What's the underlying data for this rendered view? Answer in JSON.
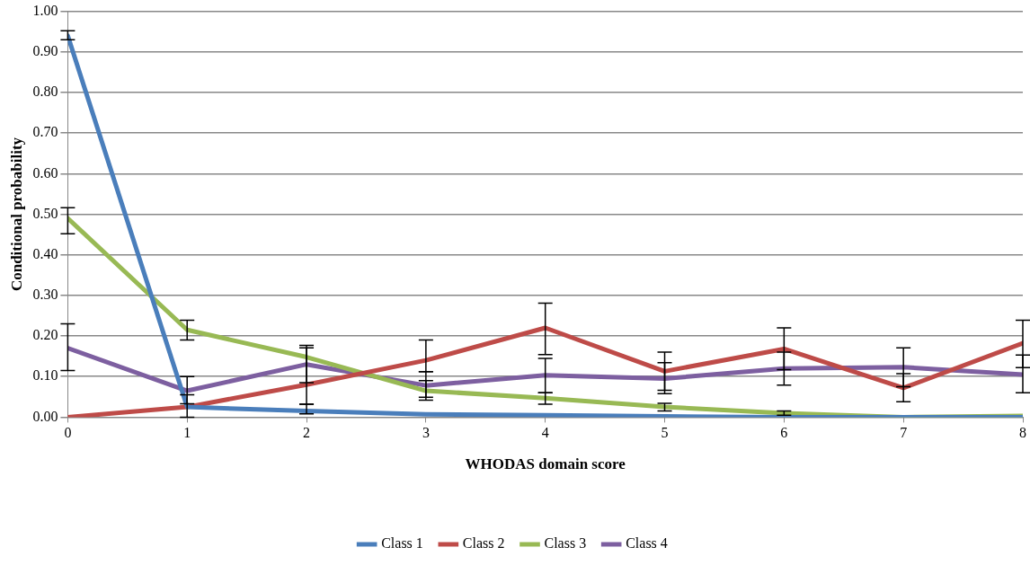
{
  "chart_data": {
    "type": "line",
    "xlabel": "WHODAS domain score",
    "ylabel": "Conditional probability",
    "x": [
      0,
      1,
      2,
      3,
      4,
      5,
      6,
      7,
      8
    ],
    "xlim": [
      0,
      8
    ],
    "xticks": [
      0,
      1,
      2,
      3,
      4,
      5,
      6,
      7,
      8
    ],
    "ylim": [
      0,
      1
    ],
    "yticks": [
      {
        "value": 0,
        "label": "0.00"
      },
      {
        "value": 0.1,
        "label": "0.10"
      },
      {
        "value": 0.2,
        "label": "0.20"
      },
      {
        "value": 0.3,
        "label": "0.30"
      },
      {
        "value": 0.4,
        "label": "0.40"
      },
      {
        "value": 0.5,
        "label": "0.50"
      },
      {
        "value": 0.6,
        "label": "0.60"
      },
      {
        "value": 0.7,
        "label": "0.70"
      },
      {
        "value": 0.8,
        "label": "0.80"
      },
      {
        "value": 0.9,
        "label": "0.90"
      },
      {
        "value": 1,
        "label": "1.00"
      }
    ],
    "grid": "y",
    "legend": "bottom",
    "marker": "none",
    "line_style": "solid",
    "series": [
      {
        "name": "Class 1",
        "color": "#4a7ebb",
        "values": [
          0.94,
          0.025,
          0.015,
          0.007,
          0.005,
          0.002,
          0,
          0,
          0
        ],
        "errors": [
          [
            0.93,
            0.952
          ],
          null,
          [
            0.008,
            0.032
          ],
          null,
          null,
          null,
          null,
          null,
          null
        ]
      },
      {
        "name": "Class 2",
        "color": "#be4b48",
        "values": [
          0,
          0.025,
          0.08,
          0.14,
          0.22,
          0.113,
          0.168,
          0.072,
          0.182
        ],
        "errors": [
          null,
          [
            0,
            0.055
          ],
          [
            0.032,
            0.177
          ],
          [
            0.112,
            0.19
          ],
          [
            0.154,
            0.281
          ],
          [
            0.066,
            0.16
          ],
          [
            0.117,
            0.22
          ],
          [
            0.038,
            0.107
          ],
          [
            0.122,
            0.239
          ]
        ]
      },
      {
        "name": "Class 3",
        "color": "#98b954",
        "values": [
          0.49,
          0.215,
          0.148,
          0.065,
          0.047,
          0.025,
          0.01,
          0,
          0.003
        ],
        "errors": [
          [
            0.452,
            0.516
          ],
          [
            0.19,
            0.239
          ],
          null,
          [
            0.042,
            0.09
          ],
          [
            0.032,
            0.06
          ],
          [
            0.015,
            0.034
          ],
          [
            0.005,
            0.015
          ],
          null,
          null
        ]
      },
      {
        "name": "Class 4",
        "color": "#7d5fa0",
        "values": [
          0.17,
          0.065,
          0.13,
          0.078,
          0.103,
          0.095,
          0.12,
          0.123,
          0.105
        ],
        "errors": [
          [
            0.115,
            0.23
          ],
          [
            0.033,
            0.1
          ],
          [
            0.085,
            0.171
          ],
          [
            0.049,
            0.112
          ],
          [
            0.06,
            0.145
          ],
          [
            0.058,
            0.134
          ],
          [
            0.079,
            0.16
          ],
          [
            0.075,
            0.171
          ],
          [
            0.06,
            0.153
          ]
        ]
      }
    ]
  }
}
